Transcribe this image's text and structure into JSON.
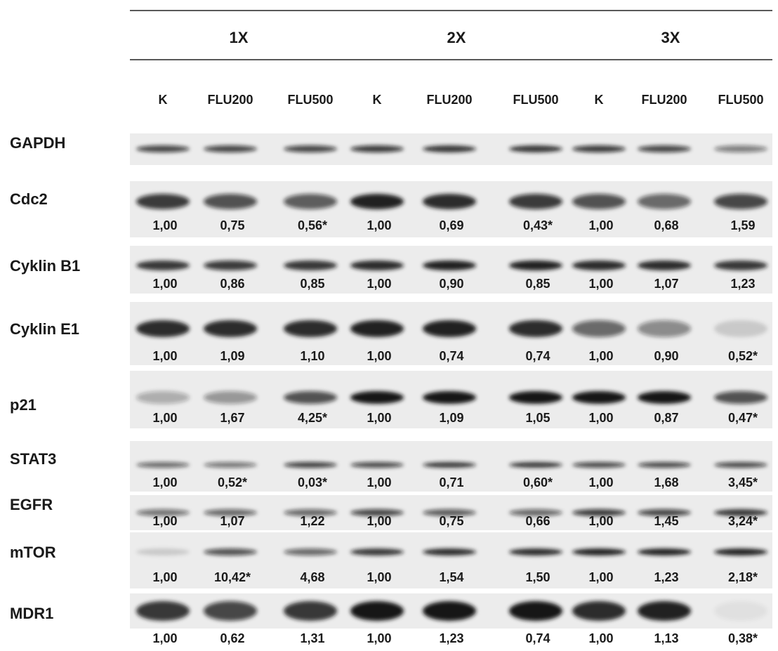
{
  "header": {
    "groups": [
      "1X",
      "2X",
      "3X"
    ],
    "lanes": [
      "K",
      "FLU200",
      "FLU500",
      "K",
      "FLU200",
      "FLU500",
      "K",
      "FLU200",
      "FLU500"
    ]
  },
  "rows": [
    {
      "label": "GAPDH"
    },
    {
      "label": "Cdc2",
      "values": [
        "1,00",
        "0,75",
        "0,56*",
        "1,00",
        "0,69",
        "0,43*",
        "1,00",
        "0,68",
        "1,59"
      ]
    },
    {
      "label": "Cyklin B1",
      "values": [
        "1,00",
        "0,86",
        "0,85",
        "1,00",
        "0,90",
        "0,85",
        "1,00",
        "1,07",
        "1,23"
      ]
    },
    {
      "label": "Cyklin E1",
      "values": [
        "1,00",
        "1,09",
        "1,10",
        "1,00",
        "0,74",
        "0,74",
        "1,00",
        "0,90",
        "0,52*"
      ]
    },
    {
      "label": "p21",
      "values": [
        "1,00",
        "1,67",
        "4,25*",
        "1,00",
        "1,09",
        "1,05",
        "1,00",
        "0,87",
        "0,47*"
      ]
    },
    {
      "label": "STAT3",
      "values": [
        "1,00",
        "0,52*",
        "0,03*",
        "1,00",
        "0,71",
        "0,60*",
        "1,00",
        "1,68",
        "3,45*"
      ]
    },
    {
      "label": "EGFR",
      "values": [
        "1,00",
        "1,07",
        "1,22",
        "1,00",
        "0,75",
        "0,66",
        "1,00",
        "1,45",
        "3,24*"
      ]
    },
    {
      "label": "mTOR",
      "values": [
        "1,00",
        "10,42*",
        "4,68",
        "1,00",
        "1,54",
        "1,50",
        "1,00",
        "1,23",
        "2,18*"
      ]
    },
    {
      "label": "MDR1",
      "values": [
        "1,00",
        "0,62",
        "1,31",
        "1,00",
        "1,23",
        "0,74",
        "1,00",
        "1,13",
        "0,38*"
      ]
    }
  ]
}
